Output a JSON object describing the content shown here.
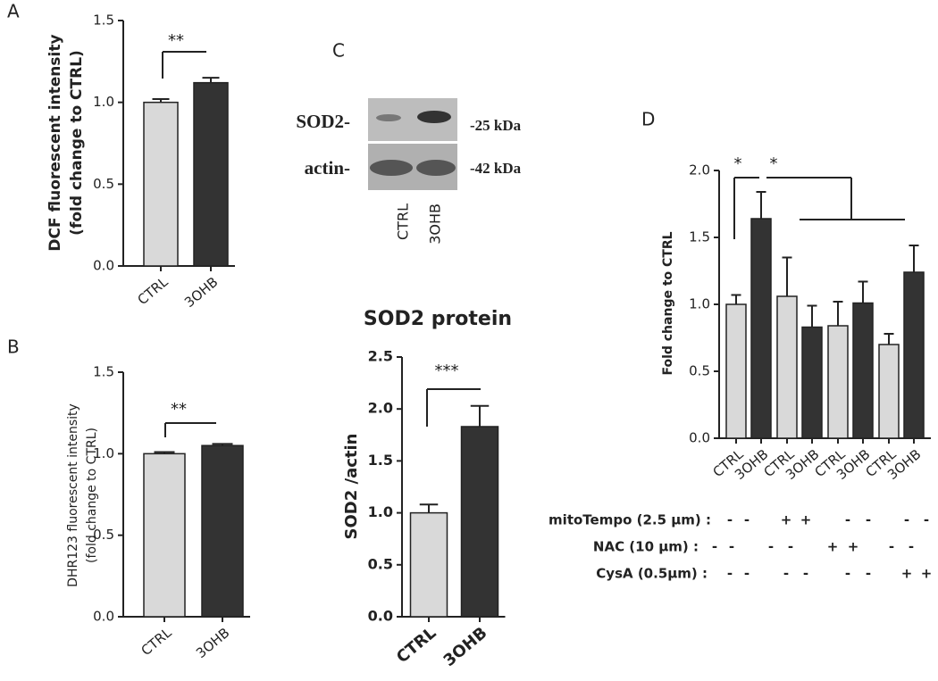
{
  "blot": {
    "panel": "C",
    "rows": [
      "SOD2-",
      "actin-"
    ],
    "sizes": [
      "-25 kDa",
      "-42 kDa"
    ],
    "lanes": [
      "CTRL",
      "3OHB"
    ]
  },
  "chart_data": [
    {
      "type": "bar",
      "panel": "A",
      "ylabel": [
        "DCF fluorescent intensity",
        "(fold change to CTRL)"
      ],
      "categories": [
        "CTRL",
        "3OHB"
      ],
      "values": [
        1.0,
        1.12
      ],
      "errors": [
        0.02,
        0.03
      ],
      "colors": [
        "#d9d9d9",
        "#333333"
      ],
      "ylim": [
        0,
        1.5
      ],
      "yticks": [
        {
          "value": 0,
          "label": "0.0"
        },
        {
          "value": 0.5,
          "label": "0.5"
        },
        {
          "value": 1,
          "label": "1.0"
        },
        {
          "value": 1.5,
          "label": "1.5"
        }
      ],
      "annotations": [
        "**"
      ]
    },
    {
      "type": "bar",
      "panel": "B",
      "ylabel": [
        "DHR123 fluorescent intensity",
        "(fold change to CTRL)"
      ],
      "categories": [
        "CTRL",
        "3OHB"
      ],
      "values": [
        1.0,
        1.05
      ],
      "errors": [
        0.01,
        0.01
      ],
      "colors": [
        "#d9d9d9",
        "#333333"
      ],
      "ylim": [
        0,
        1.5
      ],
      "yticks": [
        {
          "value": 0,
          "label": "0.0"
        },
        {
          "value": 0.5,
          "label": "0.5"
        },
        {
          "value": 1,
          "label": "1.0"
        },
        {
          "value": 1.5,
          "label": "1.5"
        }
      ],
      "annotations": [
        "**"
      ]
    },
    {
      "type": "bar",
      "title": "SOD2 protein",
      "ylabel": [
        "SOD2 /actin"
      ],
      "categories": [
        "CTRL",
        "3OHB"
      ],
      "values": [
        1.0,
        1.83
      ],
      "errors": [
        0.08,
        0.2
      ],
      "colors": [
        "#d9d9d9",
        "#333333"
      ],
      "ylim": [
        0,
        2.5
      ],
      "yticks": [
        {
          "value": 0,
          "label": "0.0"
        },
        {
          "value": 0.5,
          "label": "0.5"
        },
        {
          "value": 1,
          "label": "1.0"
        },
        {
          "value": 1.5,
          "label": "1.5"
        },
        {
          "value": 2,
          "label": "2.0"
        },
        {
          "value": 2.5,
          "label": "2.5"
        }
      ],
      "annotations": [
        "***"
      ]
    },
    {
      "type": "bar",
      "panel": "D",
      "ylabel": [
        "Fold change to CTRL"
      ],
      "categories": [
        "CTRL",
        "3OHB",
        "CTRL",
        "3OHB",
        "CTRL",
        "3OHB",
        "CTRL",
        "3OHB"
      ],
      "values": [
        1.0,
        1.64,
        1.06,
        0.83,
        0.84,
        1.01,
        0.7,
        1.24
      ],
      "errors": [
        0.07,
        0.2,
        0.29,
        0.16,
        0.18,
        0.16,
        0.08,
        0.2
      ],
      "colors": [
        "#d9d9d9",
        "#333333",
        "#d9d9d9",
        "#333333",
        "#d9d9d9",
        "#333333",
        "#d9d9d9",
        "#333333"
      ],
      "ylim": [
        0,
        2
      ],
      "yticks": [
        {
          "value": 0,
          "label": "0.0"
        },
        {
          "value": 0.5,
          "label": "0.5"
        },
        {
          "value": 1,
          "label": "1.0"
        },
        {
          "value": 1.5,
          "label": "1.5"
        },
        {
          "value": 2,
          "label": "2.0"
        }
      ],
      "annotations": [
        "*",
        "*"
      ],
      "treatments": [
        {
          "label": "mitoTempo (2.5 µm) :",
          "signs": [
            "-",
            "-",
            "+",
            "+",
            "-",
            "-",
            "-",
            "-"
          ]
        },
        {
          "label": "NAC (10 µm) :",
          "signs": [
            "-",
            "-",
            "-",
            "-",
            "+",
            "+",
            "-",
            "-"
          ]
        },
        {
          "label": "CysA (0.5µm) :",
          "signs": [
            "-",
            "-",
            "-",
            "-",
            "-",
            "-",
            "+",
            "+"
          ]
        }
      ]
    }
  ]
}
